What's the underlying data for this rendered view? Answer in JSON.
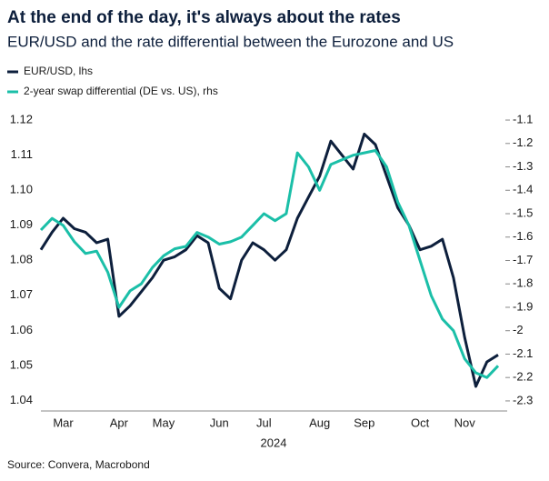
{
  "chart_data": {
    "type": "line",
    "title": "At the end of the day, it's always about the rates",
    "subtitle": "EUR/USD and the rate differential between the Eurozone and US",
    "xlabel": "2024",
    "source": "Source: Convera, Macrobond",
    "categories": [
      null,
      null,
      "Mar",
      null,
      null,
      null,
      null,
      "Apr",
      null,
      null,
      null,
      "May",
      null,
      null,
      null,
      null,
      "Jun",
      null,
      null,
      null,
      "Jul",
      null,
      null,
      null,
      null,
      "Aug",
      null,
      null,
      null,
      "Sep",
      null,
      null,
      null,
      null,
      "Oct",
      null,
      null,
      null,
      "Nov",
      null,
      null,
      null
    ],
    "series": [
      {
        "name": "EUR/USD, lhs",
        "color": "#0d1f3c",
        "axis": "y",
        "values": [
          1.083,
          1.088,
          1.092,
          1.089,
          1.088,
          1.085,
          1.086,
          1.064,
          1.067,
          1.071,
          1.075,
          1.08,
          1.081,
          1.083,
          1.087,
          1.085,
          1.072,
          1.069,
          1.08,
          1.085,
          1.083,
          1.08,
          1.083,
          1.092,
          1.098,
          1.104,
          1.114,
          1.11,
          1.106,
          1.116,
          1.113,
          1.104,
          1.095,
          1.09,
          1.083,
          1.084,
          1.086,
          1.075,
          1.058,
          1.044,
          1.051,
          1.053
        ]
      },
      {
        "name": "2-year swap differential (DE vs. US), rhs",
        "color": "#1bbfa8",
        "axis": "y2",
        "values": [
          -1.57,
          -1.52,
          -1.55,
          -1.62,
          -1.67,
          -1.66,
          -1.75,
          -1.9,
          -1.83,
          -1.8,
          -1.73,
          -1.68,
          -1.65,
          -1.64,
          -1.58,
          -1.6,
          -1.63,
          -1.62,
          -1.6,
          -1.55,
          -1.5,
          -1.53,
          -1.5,
          -1.24,
          -1.3,
          -1.4,
          -1.29,
          -1.27,
          -1.25,
          -1.24,
          -1.23,
          -1.3,
          -1.45,
          -1.55,
          -1.7,
          -1.85,
          -1.95,
          -2.0,
          -2.12,
          -2.18,
          -2.2,
          -2.15
        ]
      }
    ],
    "ylim": [
      1.037,
      1.1226
    ],
    "yticks": [
      1.04,
      1.05,
      1.06,
      1.07,
      1.08,
      1.09,
      {
        "value": 1.1,
        "label": "1.10"
      },
      1.11,
      1.12
    ],
    "y2lim": [
      -2.343,
      -1.061
    ],
    "y2ticks": [
      -2.3,
      -2.2,
      -2.1,
      -2,
      -1.9,
      -1.8,
      -1.7,
      -1.6,
      -1.5,
      -1.4,
      -1.3,
      -1.2,
      -1.1
    ],
    "legend": "top-left"
  }
}
